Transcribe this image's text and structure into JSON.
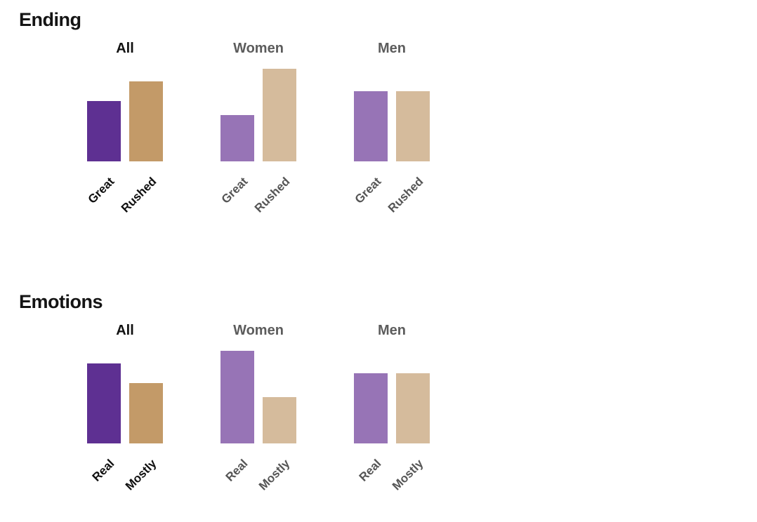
{
  "page": {
    "background": "#ffffff"
  },
  "colors": {
    "bar_dark": [
      "#5e3092",
      "#c39a68"
    ],
    "bar_light": [
      "#9774b6",
      "#d5bb9c"
    ],
    "text_black": "#0f0f0f",
    "text_gray": "#555555"
  },
  "chart_data": [
    {
      "type": "bar",
      "title": "Ending",
      "categories": [
        "Great",
        "Rushed"
      ],
      "groups": [
        {
          "name": "All",
          "emphasis": true,
          "values": [
            43,
            57
          ]
        },
        {
          "name": "Women",
          "emphasis": false,
          "values": [
            33,
            66
          ]
        },
        {
          "name": "Men",
          "emphasis": false,
          "values": [
            50,
            50
          ]
        }
      ],
      "ylim": [
        0,
        100
      ],
      "grid": false,
      "legend": false,
      "axis_lines": false
    },
    {
      "type": "bar",
      "title": "Emotions",
      "categories": [
        "Real",
        "Mostly"
      ],
      "groups": [
        {
          "name": "All",
          "emphasis": true,
          "values": [
            57,
            43
          ]
        },
        {
          "name": "Women",
          "emphasis": false,
          "values": [
            66,
            33
          ]
        },
        {
          "name": "Men",
          "emphasis": false,
          "values": [
            50,
            50
          ]
        }
      ],
      "ylim": [
        0,
        100
      ],
      "grid": false,
      "legend": false,
      "axis_lines": false
    }
  ]
}
